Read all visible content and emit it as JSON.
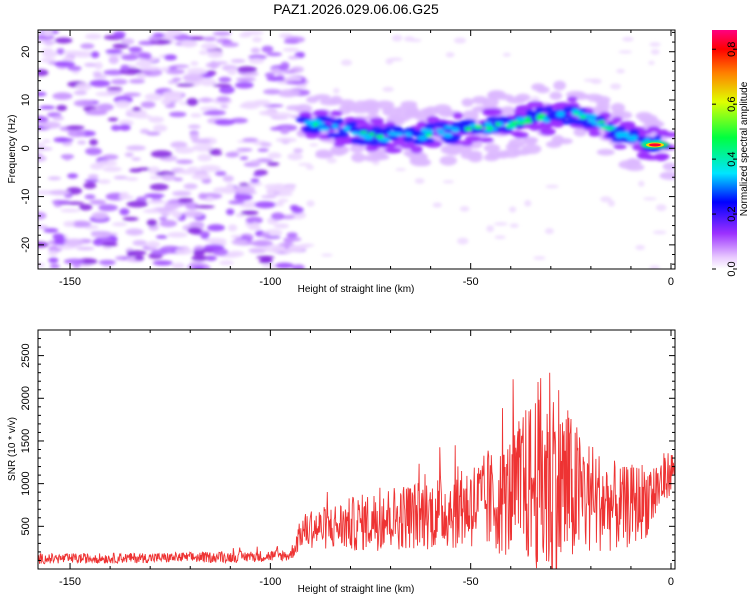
{
  "title": "PAZ1.2026.029.06.06.G25",
  "colors": {
    "snr_line": "#ee3333",
    "axis": "#000000",
    "background": "#ffffff"
  },
  "chart_data": [
    {
      "type": "heatmap",
      "name": "spectrogram",
      "xlabel": "Height of straight line (km)",
      "ylabel": "Frequency (Hz)",
      "xlim": [
        -158,
        1
      ],
      "ylim": [
        -25,
        24.5
      ],
      "xticks": [
        -150,
        -100,
        -50,
        0
      ],
      "yticks": [
        -20,
        -10,
        0,
        10,
        20
      ],
      "x_tick_labels": [
        "-150",
        "-100",
        "-50",
        "0"
      ],
      "y_tick_labels": [
        "-20",
        "-10",
        "0",
        "10",
        "20"
      ],
      "signal_track": [
        {
          "x": -92,
          "y": 6
        },
        {
          "x": -85,
          "y": 4.5
        },
        {
          "x": -78,
          "y": 3
        },
        {
          "x": -70,
          "y": 2.5
        },
        {
          "x": -62,
          "y": 3
        },
        {
          "x": -55,
          "y": 3.5
        },
        {
          "x": -48,
          "y": 4
        },
        {
          "x": -40,
          "y": 5
        },
        {
          "x": -32,
          "y": 6.5
        },
        {
          "x": -25,
          "y": 7
        },
        {
          "x": -20,
          "y": 6.5
        },
        {
          "x": -15,
          "y": 4
        },
        {
          "x": -10,
          "y": 2
        },
        {
          "x": -5,
          "y": 1
        },
        {
          "x": 0,
          "y": 0
        }
      ],
      "noise_region_x": [
        -158,
        -92
      ],
      "colorbar": {
        "label": "Normalized spectral amplitude",
        "range": [
          0,
          0.87
        ],
        "ticks": [
          0.0,
          0.2,
          0.4,
          0.6,
          0.8
        ],
        "tick_labels": [
          "0.0",
          "0.2",
          "0.4",
          "0.6",
          "0.8"
        ]
      }
    },
    {
      "type": "line",
      "name": "snr",
      "xlabel": "Height of straight line (km)",
      "ylabel": "SNR (10 * v/v)",
      "xlim": [
        -158,
        1
      ],
      "ylim": [
        0,
        2800
      ],
      "xticks": [
        -150,
        -100,
        -50,
        0
      ],
      "yticks": [
        500,
        1000,
        1500,
        2000,
        2500
      ],
      "x_tick_labels": [
        "-150",
        "-100",
        "-50",
        "0"
      ],
      "y_tick_labels": [
        "500",
        "1000",
        "1500",
        "2000",
        "2500"
      ],
      "series": [
        {
          "name": "SNR",
          "envelope": [
            {
              "x": -158,
              "mean": 120,
              "amp": 60
            },
            {
              "x": -130,
              "mean": 130,
              "amp": 60
            },
            {
              "x": -110,
              "mean": 140,
              "amp": 65
            },
            {
              "x": -95,
              "mean": 160,
              "amp": 70
            },
            {
              "x": -92,
              "mean": 450,
              "amp": 200
            },
            {
              "x": -80,
              "mean": 520,
              "amp": 320
            },
            {
              "x": -70,
              "mean": 600,
              "amp": 380
            },
            {
              "x": -60,
              "mean": 650,
              "amp": 420
            },
            {
              "x": -50,
              "mean": 750,
              "amp": 520
            },
            {
              "x": -42,
              "mean": 800,
              "amp": 650
            },
            {
              "x": -35,
              "mean": 1000,
              "amp": 1000
            },
            {
              "x": -30,
              "mean": 1100,
              "amp": 1500
            },
            {
              "x": -25,
              "mean": 900,
              "amp": 900
            },
            {
              "x": -18,
              "mean": 800,
              "amp": 600
            },
            {
              "x": -12,
              "mean": 700,
              "amp": 500
            },
            {
              "x": -5,
              "mean": 850,
              "amp": 450
            },
            {
              "x": 0,
              "mean": 1150,
              "amp": 250
            },
            {
              "x": 1,
              "mean": 1200,
              "amp": 150
            }
          ]
        }
      ]
    }
  ]
}
